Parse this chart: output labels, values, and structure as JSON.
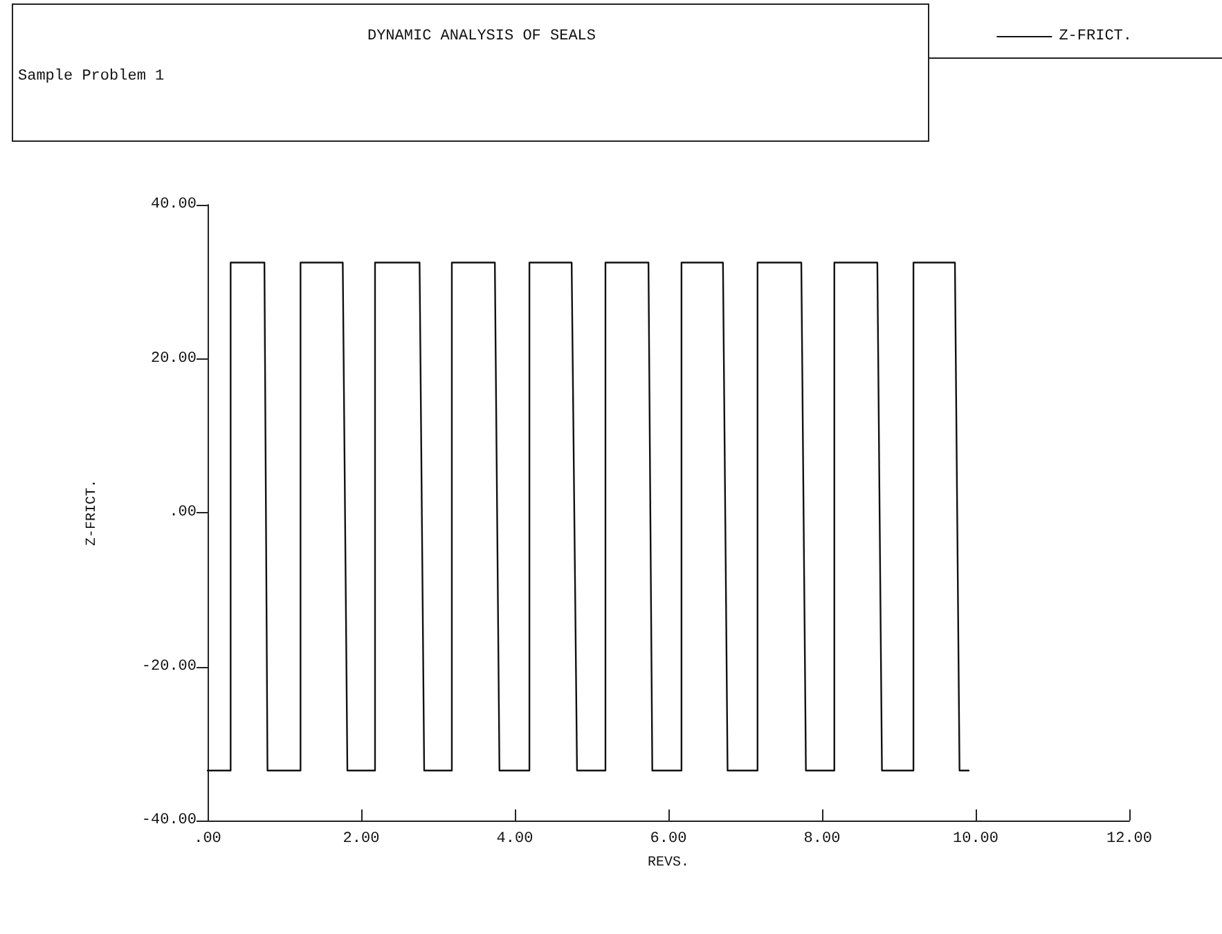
{
  "chart_data": {
    "type": "line",
    "title": "DYNAMIC ANALYSIS OF SEALS",
    "subtitle": "Sample Problem 1",
    "xlabel": "REVS.",
    "ylabel": "Z-FRICT.",
    "series": [
      {
        "name": "Z-FRICT.",
        "color": "#111111",
        "x": [
          0,
          0.3,
          0.3,
          0.74,
          0.78,
          1.21,
          1.21,
          1.76,
          1.82,
          2.18,
          2.18,
          2.76,
          2.82,
          3.18,
          3.18,
          3.74,
          3.8,
          4.19,
          4.19,
          4.74,
          4.81,
          5.18,
          5.18,
          5.74,
          5.79,
          6.17,
          6.17,
          6.71,
          6.77,
          7.16,
          7.16,
          7.73,
          7.79,
          8.16,
          8.16,
          8.72,
          8.78,
          9.19,
          9.19,
          9.73,
          9.79,
          9.91
        ],
        "values": [
          -33.5,
          -33.5,
          32.5,
          32.5,
          -33.5,
          -33.5,
          32.5,
          32.5,
          -33.5,
          -33.5,
          32.5,
          32.5,
          -33.5,
          -33.5,
          32.5,
          32.5,
          -33.5,
          -33.5,
          32.5,
          32.5,
          -33.5,
          -33.5,
          32.5,
          32.5,
          -33.5,
          -33.5,
          32.5,
          32.5,
          -33.5,
          -33.5,
          32.5,
          32.5,
          -33.5,
          -33.5,
          32.5,
          32.5,
          -33.5,
          -33.5,
          32.5,
          32.5,
          -33.5,
          -33.5
        ]
      }
    ],
    "xlim": [
      0,
      12
    ],
    "xticks": [
      {
        "value": 0,
        "label": ".00"
      },
      {
        "value": 2,
        "label": "2.00"
      },
      {
        "value": 4,
        "label": "4.00"
      },
      {
        "value": 6,
        "label": "6.00"
      },
      {
        "value": 8,
        "label": "8.00"
      },
      {
        "value": 10,
        "label": "10.00"
      },
      {
        "value": 12,
        "label": "12.00"
      }
    ],
    "ylim": [
      -40,
      40
    ],
    "yticks": [
      {
        "value": -40,
        "label": "-40.00"
      },
      {
        "value": -20,
        "label": "-20.00"
      },
      {
        "value": 0,
        "label": ".00"
      },
      {
        "value": 20,
        "label": "20.00"
      },
      {
        "value": 40,
        "label": "40.00"
      }
    ],
    "grid": false,
    "legend": "top right",
    "marker": "none",
    "line_style": "solid"
  }
}
